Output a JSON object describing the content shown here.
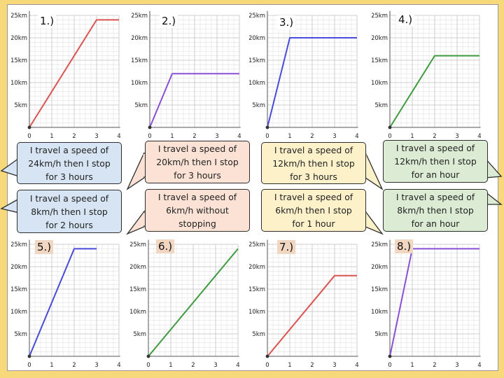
{
  "colors": {
    "background": "#f7d97c",
    "red_line": "#d9534f",
    "purple_line": "#8a4fd6",
    "blue_line": "#4a4adb",
    "green_line": "#3f9a3f"
  },
  "axis": {
    "x_ticks": [
      "0",
      "1",
      "2",
      "3",
      "4"
    ],
    "y_ticks": [
      "5km",
      "10km",
      "15km",
      "20km",
      "25km"
    ]
  },
  "graphs": [
    {
      "number": "1.)",
      "color": "red_line",
      "points": [
        [
          0,
          0
        ],
        [
          3,
          24
        ],
        [
          4,
          24
        ]
      ]
    },
    {
      "number": "2.)",
      "color": "purple_line",
      "points": [
        [
          0,
          0
        ],
        [
          1,
          12
        ],
        [
          4,
          12
        ]
      ]
    },
    {
      "number": "3.)",
      "color": "blue_line",
      "points": [
        [
          0,
          0
        ],
        [
          1,
          20
        ],
        [
          4,
          20
        ]
      ]
    },
    {
      "number": "4.)",
      "color": "green_line",
      "points": [
        [
          0,
          0
        ],
        [
          2,
          16
        ],
        [
          4,
          16
        ]
      ]
    },
    {
      "number": "5.)",
      "color": "blue_line",
      "points": [
        [
          0,
          0
        ],
        [
          2,
          24
        ],
        [
          3,
          24
        ]
      ]
    },
    {
      "number": "6.)",
      "color": "green_line",
      "points": [
        [
          0,
          0
        ],
        [
          4,
          24
        ]
      ]
    },
    {
      "number": "7.)",
      "color": "red_line",
      "points": [
        [
          0,
          0
        ],
        [
          3,
          18
        ],
        [
          4,
          18
        ]
      ]
    },
    {
      "number": "8.)",
      "color": "purple_line",
      "points": [
        [
          0,
          0
        ],
        [
          1,
          24
        ],
        [
          4,
          24
        ]
      ]
    }
  ],
  "statements": [
    {
      "lines": [
        "I travel a speed of",
        "24km/h then I stop",
        "for 3 hours"
      ],
      "color": "blue"
    },
    {
      "lines": [
        "I travel a speed of",
        "20km/h then I stop",
        "for 3 hours"
      ],
      "color": "peach"
    },
    {
      "lines": [
        "I travel a speed of",
        "12km/h then I stop",
        "for 3 hours"
      ],
      "color": "yellow"
    },
    {
      "lines": [
        "I travel a speed of",
        "12km/h then I stop",
        "for an hour"
      ],
      "color": "green"
    },
    {
      "lines": [
        "I travel a speed of",
        "8km/h then I stop",
        "for 2 hours"
      ],
      "color": "blue"
    },
    {
      "lines": [
        "I travel a speed of",
        "6km/h without",
        "stopping"
      ],
      "color": "peach"
    },
    {
      "lines": [
        "I travel a speed of",
        "6km/h then I stop",
        "for 1 hour"
      ],
      "color": "yellow"
    },
    {
      "lines": [
        "I travel a speed of",
        "8km/h then I stop",
        "for an hour"
      ],
      "color": "green"
    }
  ]
}
